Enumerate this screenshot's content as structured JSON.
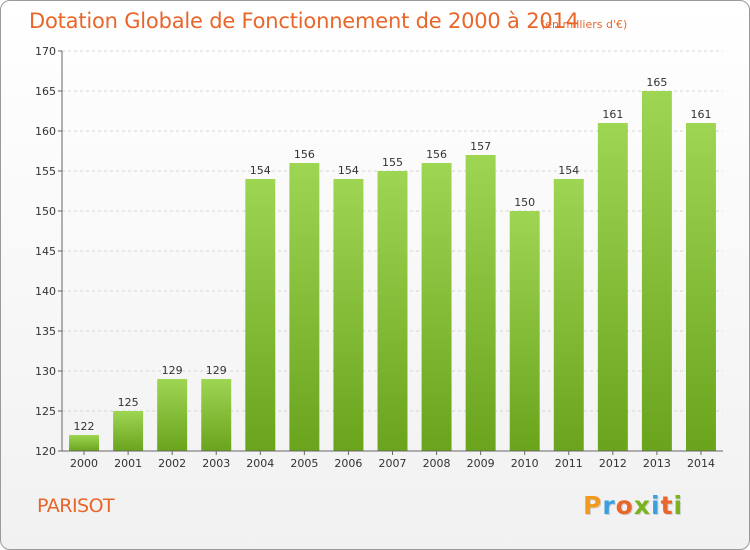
{
  "header": {
    "title": "Dotation Globale de Fonctionnement de 2000 à 2014",
    "unit": "(en milliers d'€)"
  },
  "footer": {
    "commune": "PARISOT",
    "logo_text": "Proxiti"
  },
  "colors": {
    "accent": "#e8662a",
    "bar_light": "#9ed654",
    "bar_dark": "#6aa31c",
    "logo_letters": [
      "#f39a1e",
      "#3aa0dd",
      "#e8662a",
      "#7ab41c",
      "#3aa0dd",
      "#e8662a",
      "#7ab41c"
    ]
  },
  "chart_data": {
    "type": "bar",
    "title": "Dotation Globale de Fonctionnement de 2000 à 2014",
    "xlabel": "",
    "ylabel": "",
    "categories": [
      "2000",
      "2001",
      "2002",
      "2003",
      "2004",
      "2005",
      "2006",
      "2007",
      "2008",
      "2009",
      "2010",
      "2011",
      "2012",
      "2013",
      "2014"
    ],
    "values": [
      122,
      125,
      129,
      129,
      154,
      156,
      154,
      155,
      156,
      157,
      150,
      154,
      161,
      165,
      161
    ],
    "ylim": [
      120,
      170
    ],
    "yticks": [
      120,
      125,
      130,
      135,
      140,
      145,
      150,
      155,
      160,
      165,
      170
    ],
    "grid": true,
    "data_labels": true
  }
}
